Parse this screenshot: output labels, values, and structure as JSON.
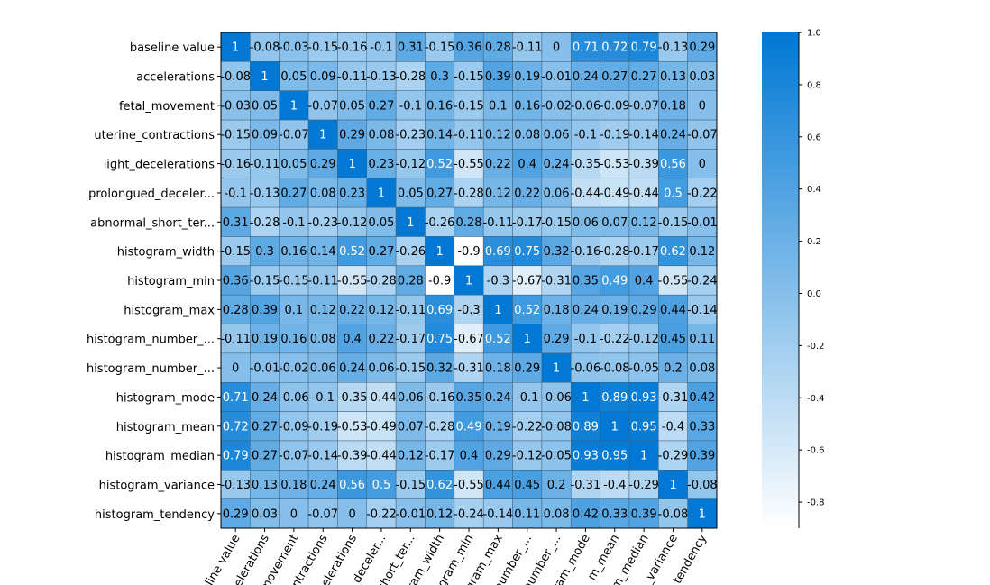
{
  "chart_data": {
    "type": "heatmap",
    "title": "",
    "xlabel": "",
    "ylabel": "",
    "row_labels": [
      "baseline value",
      "accelerations",
      "fetal_movement",
      "uterine_contractions",
      "light_decelerations",
      "prolongued_deceler...",
      "abnormal_short_ter...",
      "histogram_width",
      "histogram_min",
      "histogram_max",
      "histogram_number_...",
      "histogram_number_...",
      "histogram_mode",
      "histogram_mean",
      "histogram_median",
      "histogram_variance",
      "histogram_tendency"
    ],
    "col_labels": [
      "baseline value",
      "accelerations",
      "fetal_movement",
      "uterine_contractions",
      "light_decelerations",
      "prolongued_deceler...",
      "abnormal_short_ter...",
      "histogram_width",
      "histogram_min",
      "histogram_max",
      "histogram_number_...",
      "histogram_number_...",
      "histogram_mode",
      "histogram_mean",
      "histogram_median",
      "histogram_variance",
      "histogram_tendency"
    ],
    "values": [
      [
        1,
        -0.08,
        -0.03,
        -0.15,
        -0.16,
        -0.1,
        0.31,
        -0.15,
        0.36,
        0.28,
        -0.11,
        0,
        0.71,
        0.72,
        0.79,
        -0.13,
        0.29
      ],
      [
        -0.08,
        1,
        0.05,
        0.09,
        -0.11,
        -0.13,
        -0.28,
        0.3,
        -0.15,
        0.39,
        0.19,
        -0.01,
        0.24,
        0.27,
        0.27,
        0.13,
        0.03
      ],
      [
        -0.03,
        0.05,
        1,
        -0.07,
        0.05,
        0.27,
        -0.1,
        0.16,
        -0.15,
        0.1,
        0.16,
        -0.02,
        -0.06,
        -0.09,
        -0.07,
        0.18,
        0
      ],
      [
        -0.15,
        0.09,
        -0.07,
        1,
        0.29,
        0.08,
        -0.23,
        0.14,
        -0.11,
        0.12,
        0.08,
        0.06,
        -0.1,
        -0.19,
        -0.14,
        0.24,
        -0.07
      ],
      [
        -0.16,
        -0.11,
        0.05,
        0.29,
        1,
        0.23,
        -0.12,
        0.52,
        -0.55,
        0.22,
        0.4,
        0.24,
        -0.35,
        -0.53,
        -0.39,
        0.56,
        0
      ],
      [
        -0.1,
        -0.13,
        0.27,
        0.08,
        0.23,
        1,
        0.05,
        0.27,
        -0.28,
        0.12,
        0.22,
        0.06,
        -0.44,
        -0.49,
        -0.44,
        0.5,
        -0.22
      ],
      [
        0.31,
        -0.28,
        -0.1,
        -0.23,
        -0.12,
        0.05,
        1,
        -0.26,
        0.28,
        -0.11,
        -0.17,
        -0.15,
        0.06,
        0.07,
        0.12,
        -0.15,
        -0.01
      ],
      [
        -0.15,
        0.3,
        0.16,
        0.14,
        0.52,
        0.27,
        -0.26,
        1,
        -0.9,
        0.69,
        0.75,
        0.32,
        -0.16,
        -0.28,
        -0.17,
        0.62,
        0.12
      ],
      [
        0.36,
        -0.15,
        -0.15,
        -0.11,
        -0.55,
        -0.28,
        0.28,
        -0.9,
        1,
        -0.3,
        -0.67,
        -0.31,
        0.35,
        0.49,
        0.4,
        -0.55,
        -0.24
      ],
      [
        0.28,
        0.39,
        0.1,
        0.12,
        0.22,
        0.12,
        -0.11,
        0.69,
        -0.3,
        1,
        0.52,
        0.18,
        0.24,
        0.19,
        0.29,
        0.44,
        -0.14
      ],
      [
        -0.11,
        0.19,
        0.16,
        0.08,
        0.4,
        0.22,
        -0.17,
        0.75,
        -0.67,
        0.52,
        1,
        0.29,
        -0.1,
        -0.22,
        -0.12,
        0.45,
        0.11
      ],
      [
        0,
        -0.01,
        -0.02,
        0.06,
        0.24,
        0.06,
        -0.15,
        0.32,
        -0.31,
        0.18,
        0.29,
        1,
        -0.06,
        -0.08,
        -0.05,
        0.2,
        0.08
      ],
      [
        0.71,
        0.24,
        -0.06,
        -0.1,
        -0.35,
        -0.44,
        0.06,
        -0.16,
        0.35,
        0.24,
        -0.1,
        -0.06,
        1,
        0.89,
        0.93,
        -0.31,
        0.42
      ],
      [
        0.72,
        0.27,
        -0.09,
        -0.19,
        -0.53,
        -0.49,
        0.07,
        -0.28,
        0.49,
        0.19,
        -0.22,
        -0.08,
        0.89,
        1,
        0.95,
        -0.4,
        0.33
      ],
      [
        0.79,
        0.27,
        -0.07,
        -0.14,
        -0.39,
        -0.44,
        0.12,
        -0.17,
        0.4,
        0.29,
        -0.12,
        -0.05,
        0.93,
        0.95,
        1,
        -0.29,
        0.39
      ],
      [
        -0.13,
        0.13,
        0.18,
        0.24,
        0.56,
        0.5,
        -0.15,
        0.62,
        -0.55,
        0.44,
        0.45,
        0.2,
        -0.31,
        -0.4,
        -0.29,
        1,
        -0.08
      ],
      [
        0.29,
        0.03,
        0,
        -0.07,
        0,
        -0.22,
        -0.01,
        0.12,
        -0.24,
        -0.14,
        0.11,
        0.08,
        0.42,
        0.33,
        0.39,
        -0.08,
        1
      ]
    ],
    "x_tick_labels_visible": [
      "eline value",
      "celerations",
      "_movement",
      "ontractions",
      "celerations",
      "l_deceler...",
      "short_ter...",
      "ram_width",
      "gram_min",
      "gram_max",
      "number_...",
      "number_...",
      "ram_mode",
      "m_mean",
      "m_median",
      "_variance",
      "tendency"
    ],
    "colorbar": {
      "min": -0.9,
      "max": 1.0,
      "ticks": [
        1.0,
        0.8,
        0.6,
        0.4,
        0.2,
        0.0,
        -0.2,
        -0.4,
        -0.6,
        -0.8
      ],
      "tick_labels": [
        "1.0",
        "0.8",
        "0.6",
        "0.4",
        "0.2",
        "0.0",
        "-0.2",
        "-0.4",
        "-0.6",
        "-0.8"
      ],
      "color_low": "#ffffff",
      "color_high": "#0078d4"
    },
    "annotation_text_color_dark": "#000000",
    "annotation_text_color_light": "#ffffff",
    "grid": true,
    "legend": "colorbar-right"
  }
}
